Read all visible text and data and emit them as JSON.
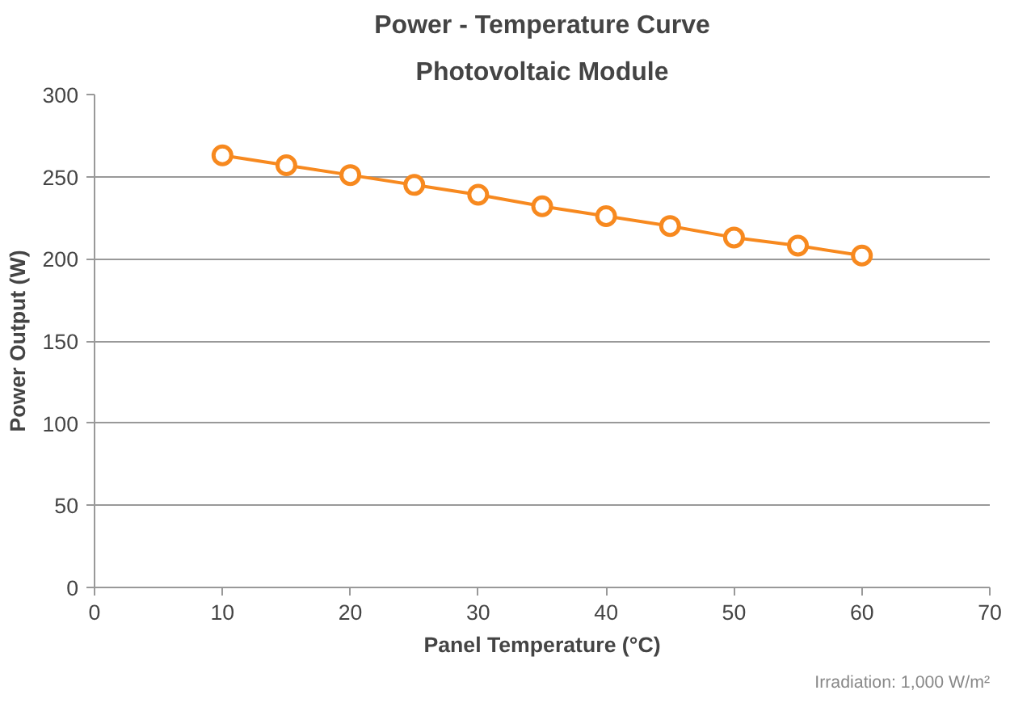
{
  "chart_data": {
    "type": "line",
    "title": "Power - Temperature Curve",
    "subtitle": "Photovoltaic Module",
    "xlabel": "Panel Temperature (°C)",
    "ylabel": "Power Output (W)",
    "annotations": [
      "Irradiation: 1,000 W/m²"
    ],
    "x": [
      10,
      15,
      20,
      25,
      30,
      35,
      40,
      45,
      50,
      55,
      60
    ],
    "series": [
      {
        "color": "#f7891f",
        "values": [
          263,
          257,
          251,
          245,
          239,
          232,
          226,
          220,
          213,
          208,
          202
        ]
      }
    ],
    "xlim": [
      0,
      70
    ],
    "xticks": [
      0,
      10,
      20,
      30,
      40,
      50,
      60,
      70
    ],
    "ylim": [
      0,
      300
    ],
    "yticks": [
      0,
      50,
      100,
      150,
      200,
      250,
      300
    ],
    "grid": "y",
    "marker": "circle",
    "line_style": "solid"
  }
}
